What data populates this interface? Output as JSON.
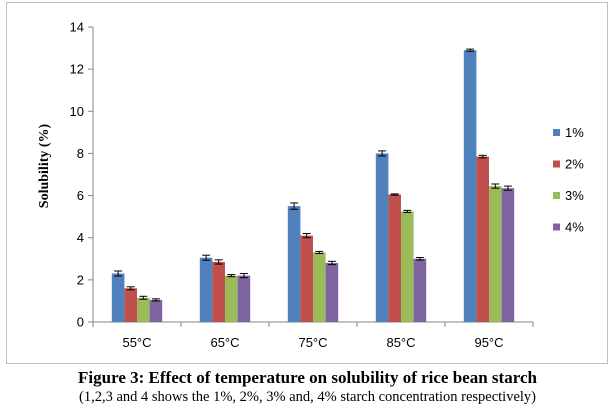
{
  "chart_data": {
    "type": "bar",
    "categories": [
      "55°C",
      "65°C",
      "75°C",
      "85°C",
      "95°C"
    ],
    "series": [
      {
        "name": "1%",
        "color": "#4f81bd",
        "values": [
          2.3,
          3.05,
          5.5,
          8.0,
          12.9
        ],
        "errors": [
          0.12,
          0.12,
          0.15,
          0.12,
          0.05
        ]
      },
      {
        "name": "2%",
        "color": "#c0504d",
        "values": [
          1.6,
          2.85,
          4.1,
          6.05,
          7.85
        ],
        "errors": [
          0.07,
          0.1,
          0.1,
          0.03,
          0.06
        ]
      },
      {
        "name": "3%",
        "color": "#9bbb59",
        "values": [
          1.15,
          2.2,
          3.3,
          5.25,
          6.45
        ],
        "errors": [
          0.07,
          0.05,
          0.05,
          0.05,
          0.1
        ]
      },
      {
        "name": "4%",
        "color": "#8064a2",
        "values": [
          1.05,
          2.2,
          2.8,
          3.0,
          6.35
        ],
        "errors": [
          0.05,
          0.1,
          0.08,
          0.06,
          0.1
        ]
      }
    ],
    "ylabel": "Solubility (%)",
    "xlabel": "",
    "ylim": [
      0,
      14
    ],
    "yticks": [
      0,
      2,
      4,
      6,
      8,
      10,
      12,
      14
    ],
    "grid": false,
    "legend_position": "right"
  },
  "caption": {
    "title": "Figure 3: Effect of temperature on solubility of rice bean starch",
    "subtitle": "(1,2,3 and 4 shows the 1%, 2%, 3% and, 4% starch concentration respectively)"
  }
}
